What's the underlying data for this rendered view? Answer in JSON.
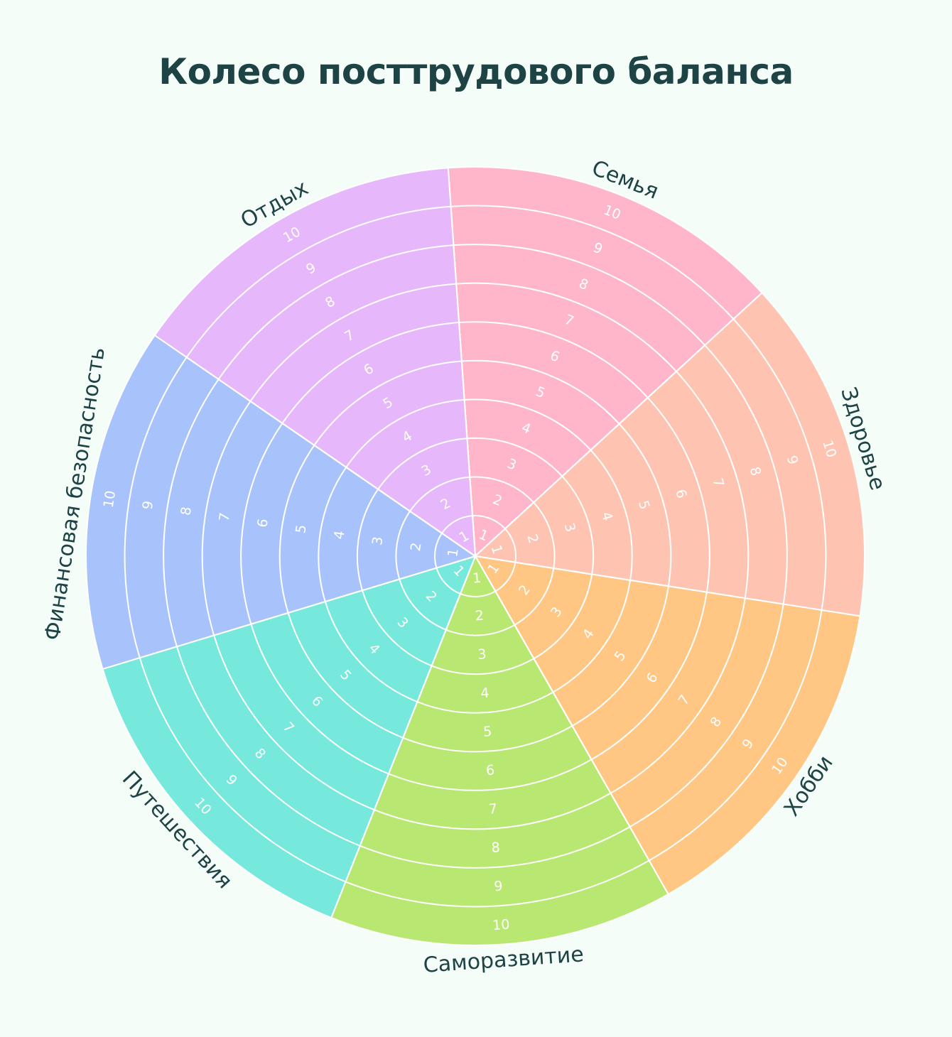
{
  "title": "Колесо посттрудового баланса",
  "wheel": {
    "levels": [
      "1",
      "2",
      "3",
      "4",
      "5",
      "6",
      "7",
      "8",
      "9",
      "10"
    ],
    "sectors": [
      {
        "label": "Семья",
        "color": "#ffb6cb"
      },
      {
        "label": "Здоровье",
        "color": "#ffc4b1"
      },
      {
        "label": "Хобби",
        "color": "#ffc783"
      },
      {
        "label": "Саморазвитие",
        "color": "#b8e872"
      },
      {
        "label": "Путешествия",
        "color": "#76e9dc"
      },
      {
        "label": "Финансовая безопасность",
        "color": "#a8c3fb"
      },
      {
        "label": "Отдых",
        "color": "#e6b7fb"
      }
    ]
  }
}
